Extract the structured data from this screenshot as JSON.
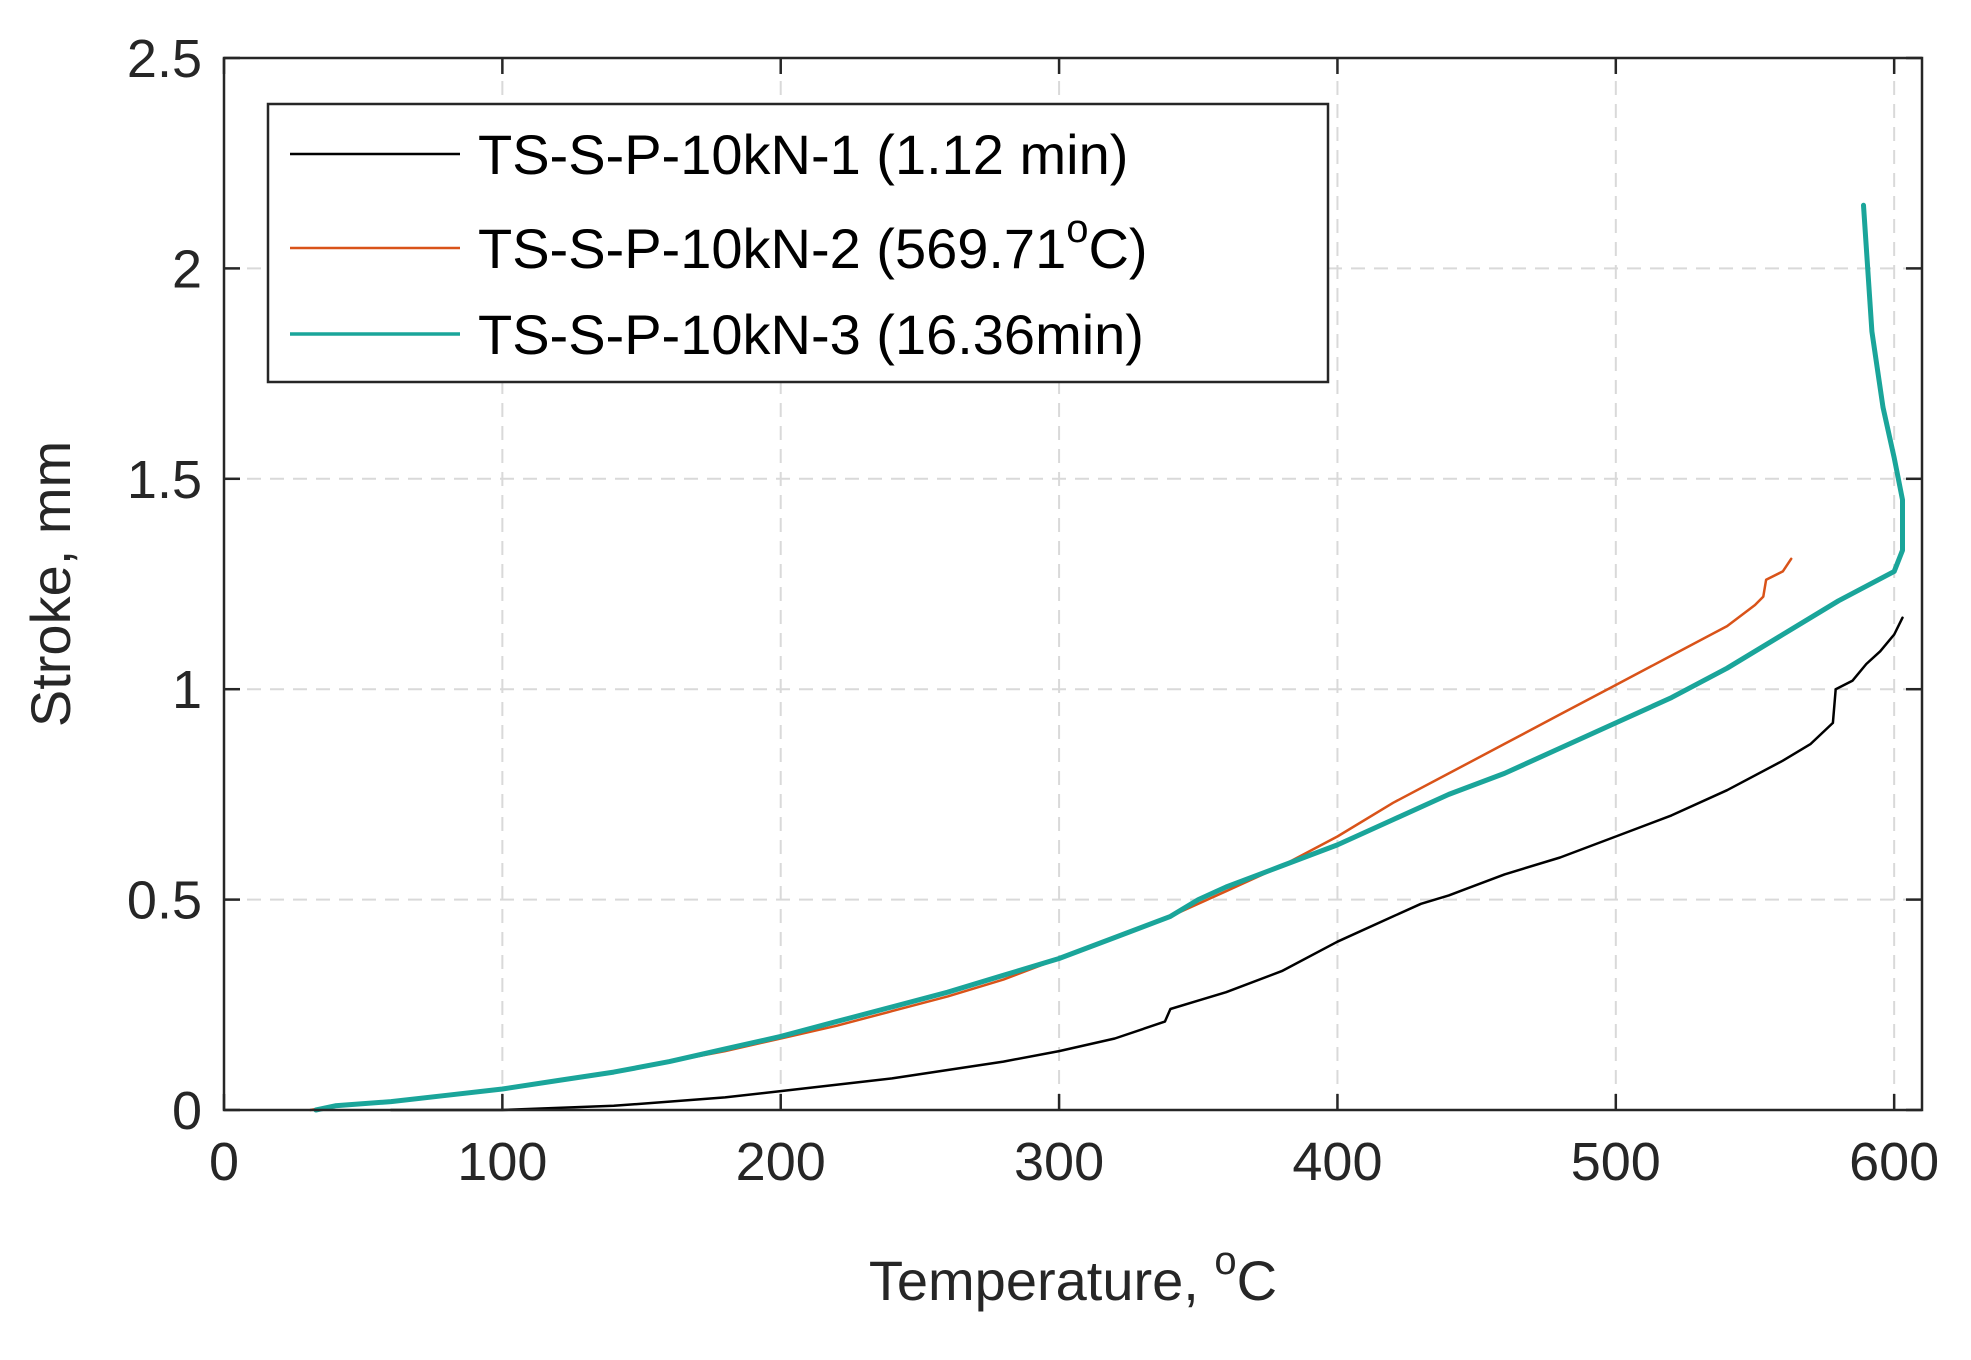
{
  "chart_data": {
    "type": "line",
    "title": "",
    "xlabel": "Temperature, ",
    "xlabel_superscript": "o",
    "xlabel_unit": "C",
    "ylabel": "Stroke, mm",
    "xlim": [
      0,
      610
    ],
    "ylim": [
      0,
      2.5
    ],
    "xticks": [
      0,
      100,
      200,
      300,
      400,
      500,
      600
    ],
    "yticks": [
      0,
      0.5,
      1,
      1.5,
      2,
      2.5
    ],
    "xtick_labels": [
      "0",
      "100",
      "200",
      "300",
      "400",
      "500",
      "600"
    ],
    "ytick_labels": [
      "0",
      "0.5",
      "1",
      "1.5",
      "2",
      "2.5"
    ],
    "grid": true,
    "legend_position": "top-left",
    "series": [
      {
        "name": "TS-S-P-10kN-1 (1.12 min)",
        "color": "#000000",
        "x": [
          60,
          80,
          100,
          120,
          140,
          160,
          180,
          200,
          220,
          240,
          260,
          280,
          300,
          320,
          338,
          340,
          350,
          360,
          380,
          400,
          420,
          430,
          440,
          460,
          480,
          500,
          520,
          540,
          560,
          570,
          578,
          579,
          585,
          590,
          595,
          600,
          603
        ],
        "y": [
          0.0,
          0.0,
          0.0,
          0.005,
          0.01,
          0.02,
          0.03,
          0.045,
          0.06,
          0.075,
          0.095,
          0.115,
          0.14,
          0.17,
          0.21,
          0.24,
          0.26,
          0.28,
          0.33,
          0.4,
          0.46,
          0.49,
          0.51,
          0.56,
          0.6,
          0.65,
          0.7,
          0.76,
          0.83,
          0.87,
          0.92,
          1.0,
          1.02,
          1.06,
          1.09,
          1.13,
          1.17
        ]
      },
      {
        "name": "TS-S-P-10kN-2 (569.71°C)",
        "legend_label": "TS-S-P-10kN-2 (569.71",
        "legend_superscript": "o",
        "legend_suffix": "C)",
        "color": "#d95319",
        "x": [
          31,
          40,
          60,
          80,
          100,
          120,
          140,
          160,
          180,
          200,
          220,
          240,
          260,
          280,
          300,
          320,
          340,
          360,
          380,
          400,
          420,
          440,
          460,
          480,
          500,
          520,
          540,
          548,
          550,
          553,
          554,
          560,
          563
        ],
        "y": [
          0.0,
          0.01,
          0.02,
          0.035,
          0.05,
          0.07,
          0.09,
          0.115,
          0.14,
          0.17,
          0.2,
          0.235,
          0.27,
          0.31,
          0.36,
          0.41,
          0.46,
          0.52,
          0.58,
          0.65,
          0.73,
          0.8,
          0.87,
          0.94,
          1.01,
          1.08,
          1.15,
          1.19,
          1.2,
          1.22,
          1.26,
          1.28,
          1.31
        ]
      },
      {
        "name": "TS-S-P-10kN-3 (16.36min)",
        "color": "#1aa59a",
        "x": [
          33,
          40,
          60,
          80,
          100,
          120,
          140,
          160,
          180,
          200,
          220,
          240,
          260,
          280,
          300,
          320,
          340,
          350,
          360,
          380,
          400,
          420,
          440,
          460,
          480,
          500,
          520,
          540,
          560,
          580,
          600,
          603,
          603,
          600,
          596,
          592,
          589
        ],
        "y": [
          0.0,
          0.01,
          0.02,
          0.035,
          0.05,
          0.07,
          0.09,
          0.115,
          0.145,
          0.175,
          0.21,
          0.245,
          0.28,
          0.32,
          0.36,
          0.41,
          0.46,
          0.5,
          0.53,
          0.58,
          0.63,
          0.69,
          0.75,
          0.8,
          0.86,
          0.92,
          0.98,
          1.05,
          1.13,
          1.21,
          1.28,
          1.33,
          1.45,
          1.55,
          1.67,
          1.85,
          2.15
        ]
      }
    ]
  }
}
